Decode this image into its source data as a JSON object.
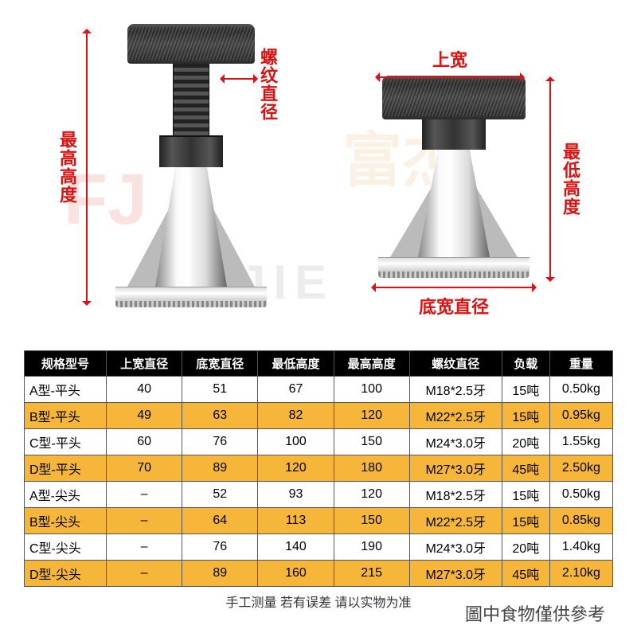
{
  "labels": {
    "max_height": "最高高度",
    "min_height": "最低高度",
    "thread_dia": "螺纹直径",
    "top_width": "上宽",
    "base_width": "底宽直径"
  },
  "watermarks": {
    "fj": "FJ",
    "cn": "富杰",
    "en": "FUJIE"
  },
  "table": {
    "headers": [
      "规格型号",
      "上宽直径",
      "底宽直径",
      "最低高度",
      "最高高度",
      "螺纹直径",
      "负载",
      "重量"
    ],
    "rows": [
      {
        "hl": false,
        "c": [
          "A型-平头",
          "40",
          "51",
          "67",
          "100",
          "M18*2.5牙",
          "15吨",
          "0.50kg"
        ]
      },
      {
        "hl": true,
        "c": [
          "B型-平头",
          "49",
          "63",
          "82",
          "120",
          "M22*2.5牙",
          "15吨",
          "0.95kg"
        ]
      },
      {
        "hl": false,
        "c": [
          "C型-平头",
          "60",
          "76",
          "100",
          "150",
          "M24*3.0牙",
          "20吨",
          "1.55kg"
        ]
      },
      {
        "hl": true,
        "c": [
          "D型-平头",
          "70",
          "89",
          "120",
          "180",
          "M27*3.0牙",
          "45吨",
          "2.50kg"
        ]
      },
      {
        "hl": false,
        "c": [
          "A型-尖头",
          "–",
          "52",
          "93",
          "120",
          "M18*2.5牙",
          "15吨",
          "0.50kg"
        ]
      },
      {
        "hl": true,
        "c": [
          "B型-尖头",
          "–",
          "64",
          "113",
          "150",
          "M22*2.5牙",
          "15吨",
          "0.85kg"
        ]
      },
      {
        "hl": false,
        "c": [
          "C型-尖头",
          "–",
          "76",
          "140",
          "190",
          "M24*3.0牙",
          "20吨",
          "1.40kg"
        ]
      },
      {
        "hl": true,
        "c": [
          "D型-尖头",
          "–",
          "89",
          "160",
          "215",
          "M27*3.0牙",
          "45吨",
          "2.10kg"
        ]
      }
    ]
  },
  "footer": "手工测量 若有误差 请以实物为准",
  "overlay": "圖中食物僅供參考"
}
